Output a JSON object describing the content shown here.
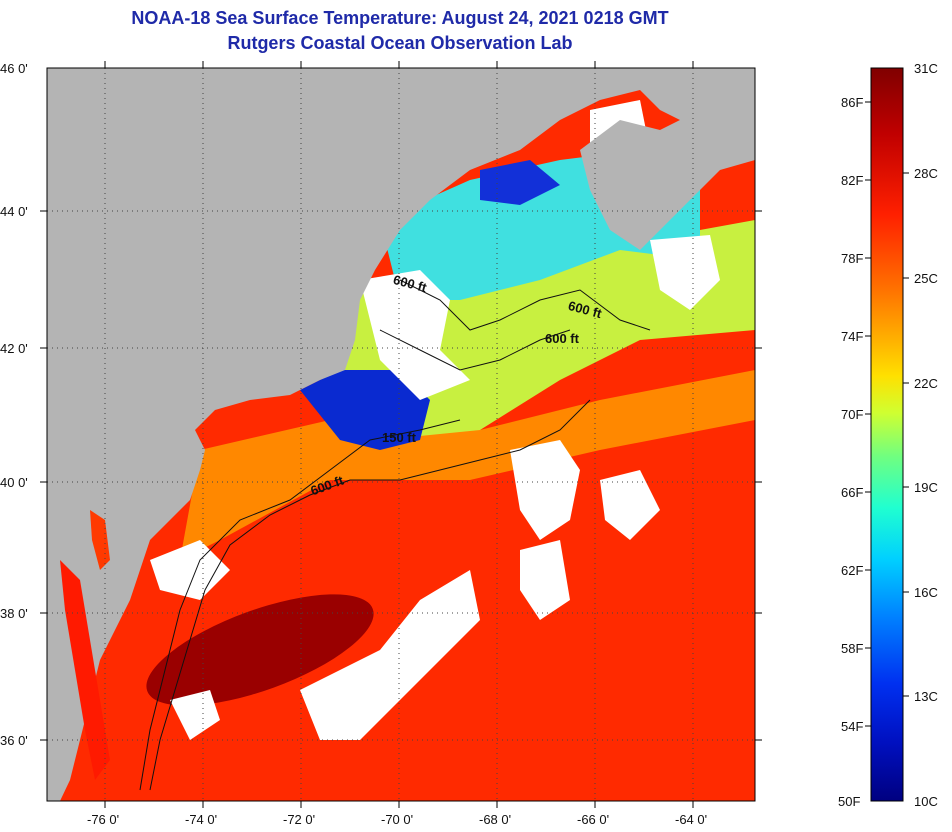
{
  "title": "NOAA-18 Sea Surface Temperature:  August 24, 2021 0218 GMT",
  "subtitle": "Rutgers Coastal Ocean Observation Lab",
  "map": {
    "lat_labels": [
      "46 0'",
      "44 0'",
      "42 0'",
      "40 0'",
      "38 0'",
      "36 0'"
    ],
    "lon_labels": [
      "-76 0'",
      "-74 0'",
      "-72 0'",
      "-70 0'",
      "-68 0'",
      "-66 0'",
      "-64 0'"
    ],
    "contour_labels": [
      "600 ft",
      "600 ft",
      "600 ft",
      "150 ft",
      "600 ft"
    ]
  },
  "colorbar": {
    "fahrenheit_labels": [
      "86F",
      "82F",
      "78F",
      "74F",
      "70F",
      "66F",
      "62F",
      "58F",
      "54F",
      "50F"
    ],
    "celsius_labels": [
      "31C",
      "28C",
      "25C",
      "22C",
      "19C",
      "16C",
      "13C",
      "10C"
    ],
    "colors": [
      "#800000",
      "#d00000",
      "#ff3000",
      "#ff8000",
      "#ffc000",
      "#e8ff20",
      "#90ff60",
      "#30ffc0",
      "#00c8ff",
      "#0060ff",
      "#0010d0",
      "#000090"
    ]
  },
  "colors": {
    "land": "#b4b4b4",
    "cloud": "#ffffff",
    "title": "#1f2aa8"
  }
}
